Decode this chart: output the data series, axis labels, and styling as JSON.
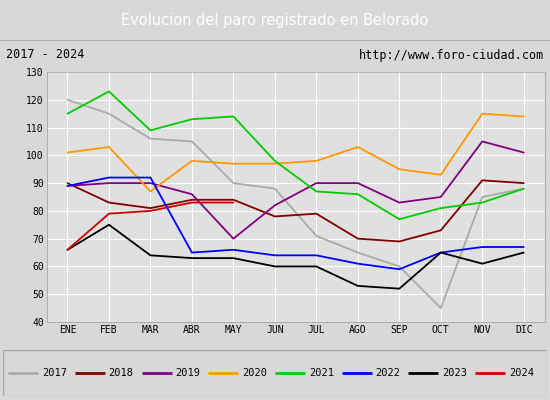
{
  "title": "Evolucion del paro registrado en Belorado",
  "subtitle_left": "2017 - 2024",
  "subtitle_right": "http://www.foro-ciudad.com",
  "months": [
    "ENE",
    "FEB",
    "MAR",
    "ABR",
    "MAY",
    "JUN",
    "JUL",
    "AGO",
    "SEP",
    "OCT",
    "NOV",
    "DIC"
  ],
  "ylim": [
    40,
    130
  ],
  "yticks": [
    40,
    50,
    60,
    70,
    80,
    90,
    100,
    110,
    120,
    130
  ],
  "series": {
    "2017": {
      "color": "#aaaaaa",
      "data": [
        120,
        115,
        106,
        105,
        90,
        88,
        71,
        65,
        60,
        45,
        85,
        88
      ]
    },
    "2018": {
      "color": "#800000",
      "data": [
        90,
        83,
        81,
        84,
        84,
        78,
        79,
        70,
        69,
        73,
        91,
        90
      ]
    },
    "2019": {
      "color": "#800080",
      "data": [
        89,
        90,
        90,
        86,
        70,
        82,
        90,
        90,
        83,
        85,
        105,
        101
      ]
    },
    "2020": {
      "color": "#ff9900",
      "data": [
        101,
        103,
        87,
        98,
        97,
        97,
        98,
        103,
        95,
        93,
        115,
        114
      ]
    },
    "2021": {
      "color": "#00cc00",
      "data": [
        115,
        123,
        109,
        113,
        114,
        98,
        87,
        86,
        77,
        81,
        83,
        88
      ]
    },
    "2022": {
      "color": "#0000ff",
      "data": [
        89,
        92,
        92,
        65,
        66,
        64,
        64,
        61,
        59,
        65,
        67,
        67
      ]
    },
    "2023": {
      "color": "#000000",
      "data": [
        66,
        75,
        64,
        63,
        63,
        60,
        60,
        53,
        52,
        65,
        61,
        65
      ]
    },
    "2024": {
      "color": "#cc0000",
      "data": [
        66,
        79,
        80,
        83,
        83,
        null,
        null,
        null,
        null,
        null,
        null,
        null
      ]
    }
  },
  "background_color": "#d8d8d8",
  "plot_bg_color": "#e0e0e0",
  "title_bg_color": "#4472c4",
  "title_fg_color": "#ffffff",
  "header_bg_color": "#f0f0f0",
  "grid_color": "#ffffff",
  "legend_bg_color": "#f0f0f0"
}
